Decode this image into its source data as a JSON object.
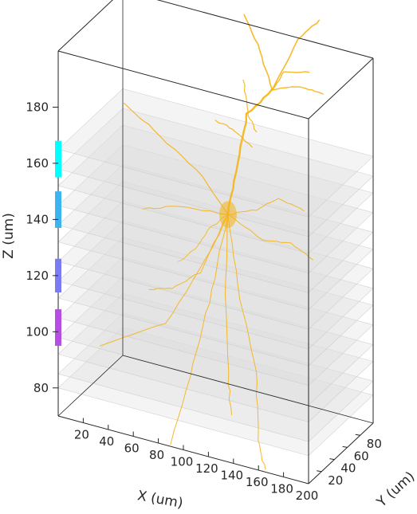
{
  "chart_data": {
    "type": "3d-scatter",
    "title": "",
    "xlabel": "X (um)",
    "ylabel": "Y (um)",
    "zlabel": "Z (um)",
    "xlim": [
      0,
      200
    ],
    "ylim": [
      0,
      100
    ],
    "zlim": [
      70,
      200
    ],
    "x_ticks": [
      "20",
      "40",
      "60",
      "80",
      "100",
      "120",
      "140",
      "160",
      "180",
      "200"
    ],
    "y_ticks": [
      "20",
      "40",
      "60",
      "80"
    ],
    "z_ticks": [
      "80",
      "100",
      "120",
      "140",
      "160",
      "180"
    ],
    "grid": false,
    "neuron": {
      "color": "#f5b316",
      "soma": {
        "x": 115,
        "y": 40,
        "z": 147
      },
      "apical_tuft": {
        "x": 140,
        "y": 60,
        "z": 190
      }
    },
    "imaging_planes": {
      "color": "#dcdcdc",
      "z_levels": [
        80,
        85,
        92,
        98,
        105,
        112,
        118,
        125,
        132,
        138,
        145,
        152,
        158,
        165
      ]
    },
    "layer_bars": [
      {
        "z_bottom": 155,
        "z_top": 168,
        "color": "#00ffff"
      },
      {
        "z_bottom": 137,
        "z_top": 150,
        "color": "#3cb4f0"
      },
      {
        "z_bottom": 114,
        "z_top": 126,
        "color": "#7b7cf3"
      },
      {
        "z_bottom": 95,
        "z_top": 108,
        "color": "#b64ee6"
      }
    ]
  }
}
